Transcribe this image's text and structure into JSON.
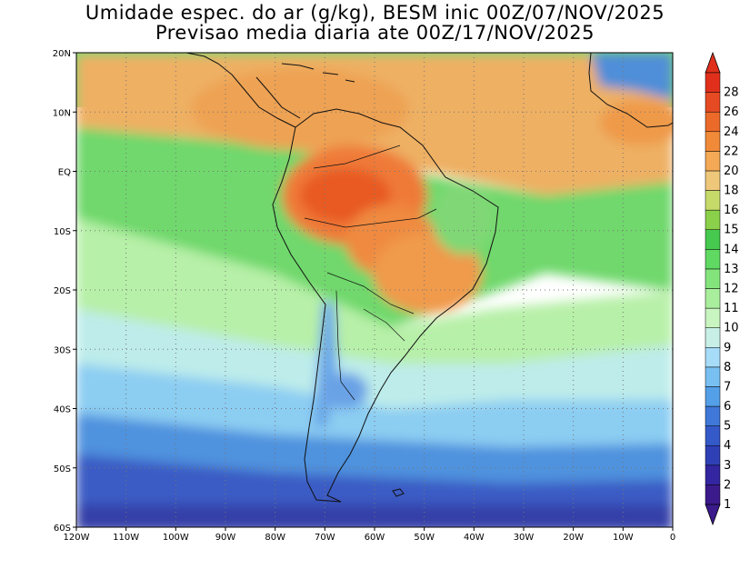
{
  "title": {
    "line1": "Umidade espec. do ar (g/kg), BESM inic 00Z/07/NOV/2025",
    "line2": "Previsao media diaria ate 00Z/17/NOV/2025"
  },
  "map": {
    "lon_range": [
      -120,
      0
    ],
    "lat_range": [
      -60,
      20
    ],
    "lon_ticks": [
      "120W",
      "110W",
      "100W",
      "90W",
      "80W",
      "70W",
      "60W",
      "50W",
      "40W",
      "30W",
      "20W",
      "10W",
      "0"
    ],
    "lat_ticks": [
      "20N",
      "10N",
      "EQ",
      "10S",
      "20S",
      "30S",
      "40S",
      "50S",
      "60S"
    ],
    "grid": true,
    "grid_style": "dotted"
  },
  "colorbar": {
    "labels": [
      "1",
      "2",
      "3",
      "4",
      "5",
      "6",
      "7",
      "8",
      "9",
      "10",
      "11",
      "12",
      "13",
      "14",
      "15",
      "16",
      "18",
      "20",
      "22",
      "24",
      "26",
      "28"
    ],
    "colors": [
      "#3b1a8c",
      "#3326a0",
      "#2f3fb5",
      "#3459c8",
      "#3f78d8",
      "#54a0e8",
      "#79c0f2",
      "#a6dcf8",
      "#c8efe6",
      "#c9f5c0",
      "#a9ee9c",
      "#84e47c",
      "#5fd962",
      "#46c94e",
      "#8ad04a",
      "#c6da6a",
      "#eec77a",
      "#f3a955",
      "#f08a38",
      "#eb6a2a",
      "#e64a22",
      "#e0301c"
    ]
  },
  "colors": {
    "ocean_north": "#f0a356",
    "land_outline": "#000000"
  }
}
